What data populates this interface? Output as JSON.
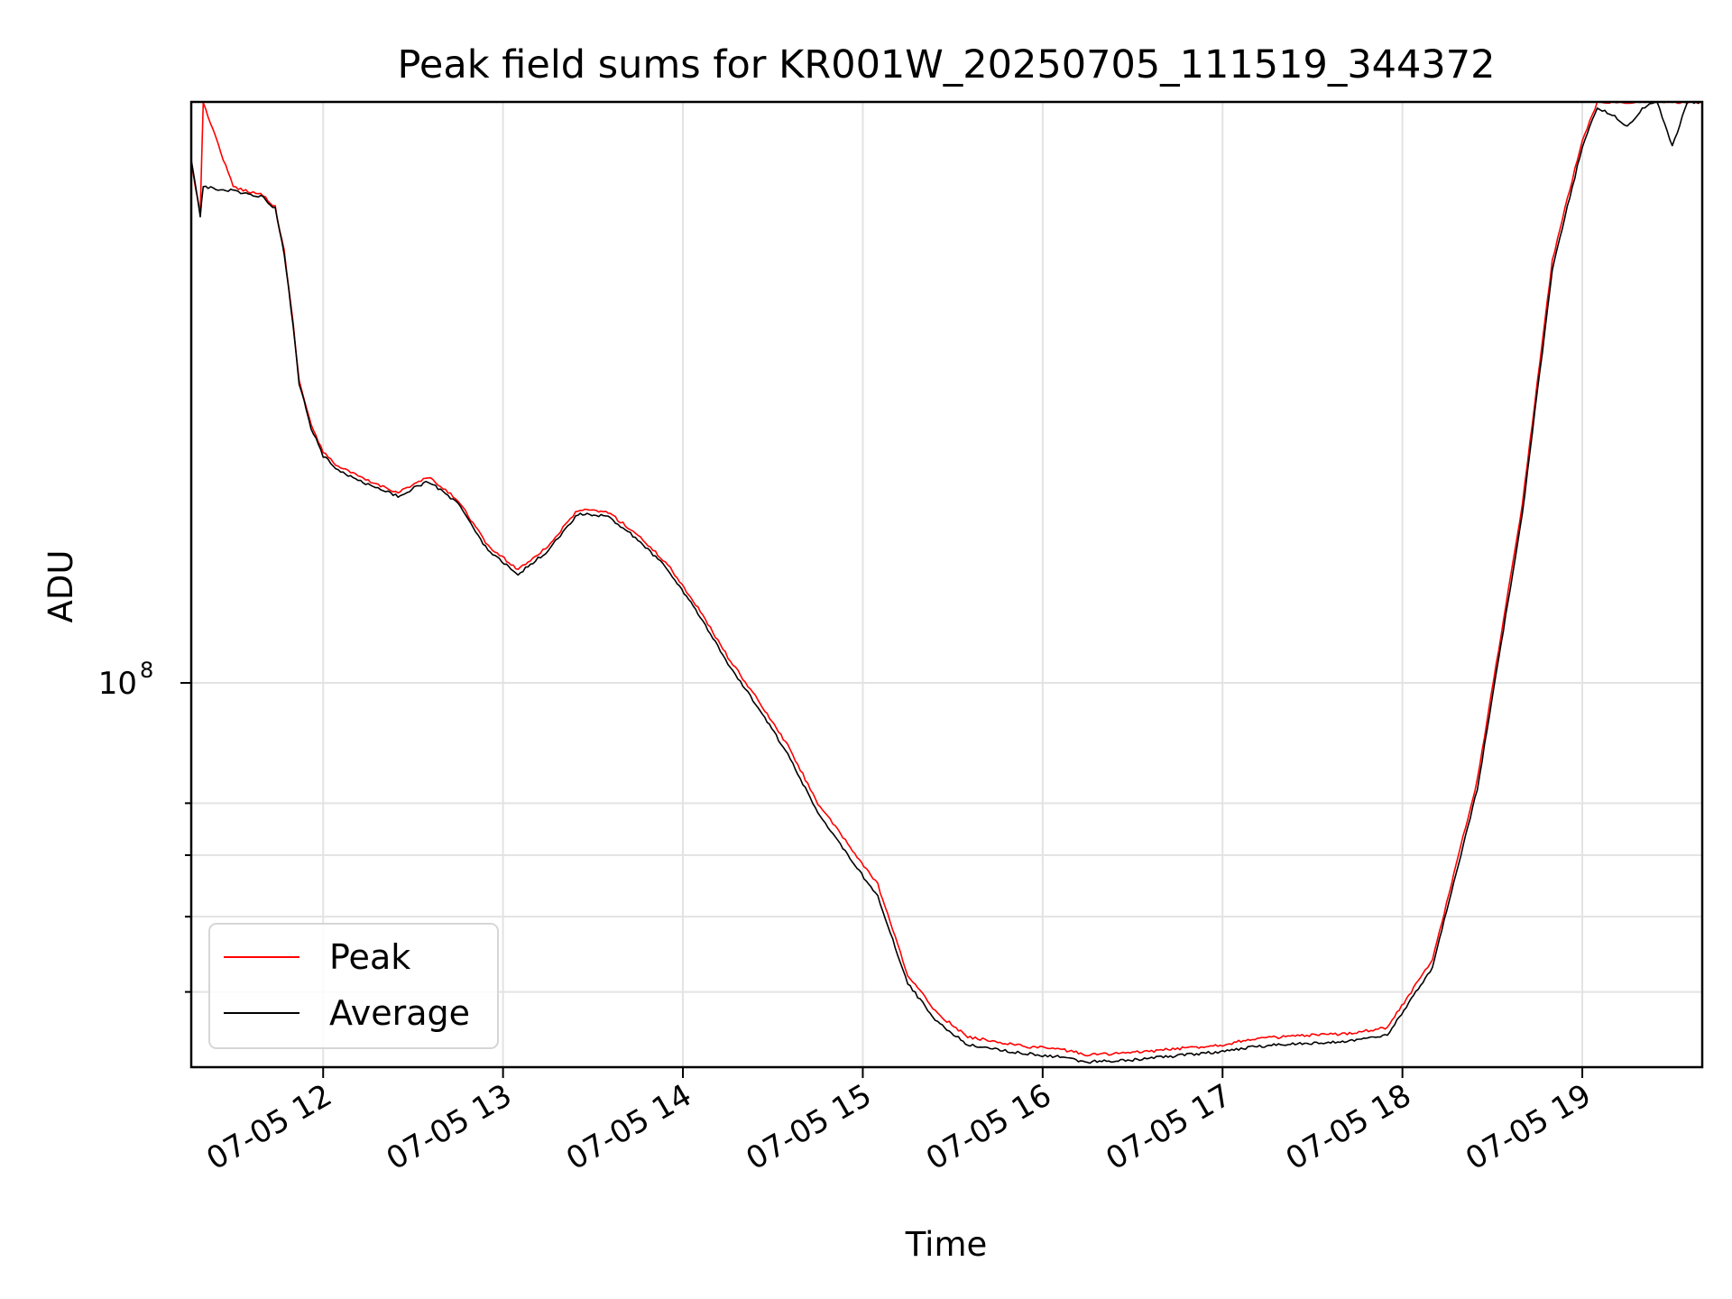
{
  "chart_data": {
    "type": "line",
    "title": "Peak field sums for KR001W_20250705_111519_344372",
    "xlabel": "Time",
    "ylabel": "ADU",
    "yscale": "log",
    "grid": true,
    "legend_position": "lower-left",
    "x_tick_labels": [
      "07-05 12",
      "07-05 13",
      "07-05 14",
      "07-05 15",
      "07-05 16",
      "07-05 17",
      "07-05 18",
      "07-05 19"
    ],
    "x_tick_hours": [
      12,
      13,
      14,
      15,
      16,
      17,
      18,
      19
    ],
    "xlim": [
      "07-05 11:16",
      "07-05 19:40"
    ],
    "y_major_tick": {
      "value": 100000000,
      "label_base": "10",
      "label_exp": "8"
    },
    "y_minor_ticks": [
      40000000,
      50000000,
      60000000,
      70000000
    ],
    "ylim": [
      32000000,
      560000000
    ],
    "series": [
      {
        "name": "Peak",
        "color": "#ff0000",
        "x": [
          "07-05 11:16",
          "07-05 11:19",
          "07-05 11:20",
          "07-05 11:30",
          "07-05 11:40",
          "07-05 11:44",
          "07-05 11:47",
          "07-05 11:50",
          "07-05 11:52",
          "07-05 11:56",
          "07-05 12:00",
          "07-05 12:05",
          "07-05 12:15",
          "07-05 12:25",
          "07-05 12:35",
          "07-05 12:45",
          "07-05 12:55",
          "07-05 13:05",
          "07-05 13:15",
          "07-05 13:25",
          "07-05 13:35",
          "07-05 13:45",
          "07-05 13:55",
          "07-05 14:05",
          "07-05 14:15",
          "07-05 14:25",
          "07-05 14:35",
          "07-05 14:45",
          "07-05 14:55",
          "07-05 15:05",
          "07-05 15:15",
          "07-05 15:25",
          "07-05 15:35",
          "07-05 15:45",
          "07-05 15:55",
          "07-05 16:05",
          "07-05 16:15",
          "07-05 16:30",
          "07-05 16:45",
          "07-05 17:00",
          "07-05 17:10",
          "07-05 17:25",
          "07-05 17:40",
          "07-05 17:55",
          "07-05 18:10",
          "07-05 18:25",
          "07-05 18:40",
          "07-05 18:50",
          "07-05 18:55",
          "07-05 19:00",
          "07-05 19:05",
          "07-05 19:10",
          "07-05 19:15",
          "07-05 19:20",
          "07-05 19:25",
          "07-05 19:30",
          "07-05 19:35",
          "07-05 19:38",
          "07-05 19:40"
        ],
        "y": [
          470000000,
          400000000,
          560000000,
          435000000,
          425000000,
          410000000,
          360000000,
          290000000,
          245000000,
          215000000,
          198000000,
          190000000,
          182000000,
          176000000,
          184000000,
          172000000,
          150000000,
          140000000,
          150000000,
          167000000,
          166000000,
          155000000,
          142000000,
          125000000,
          108000000,
          95000000,
          83000000,
          70000000,
          62000000,
          55000000,
          42000000,
          37500000,
          35000000,
          34500000,
          34000000,
          33800000,
          33200000,
          33400000,
          33800000,
          34200000,
          34800000,
          35100000,
          35300000,
          36000000,
          44000000,
          75000000,
          170000000,
          350000000,
          420000000,
          500000000,
          560000000,
          560000000,
          560000000,
          560000000,
          560000000,
          560000000,
          560000000,
          560000000,
          560000000
        ]
      },
      {
        "name": "Average",
        "color": "#000000",
        "x": [
          "07-05 11:16",
          "07-05 11:19",
          "07-05 11:20",
          "07-05 11:30",
          "07-05 11:40",
          "07-05 11:44",
          "07-05 11:47",
          "07-05 11:50",
          "07-05 11:52",
          "07-05 11:56",
          "07-05 12:00",
          "07-05 12:05",
          "07-05 12:15",
          "07-05 12:25",
          "07-05 12:35",
          "07-05 12:45",
          "07-05 12:55",
          "07-05 13:05",
          "07-05 13:15",
          "07-05 13:25",
          "07-05 13:35",
          "07-05 13:45",
          "07-05 13:55",
          "07-05 14:05",
          "07-05 14:15",
          "07-05 14:25",
          "07-05 14:35",
          "07-05 14:45",
          "07-05 14:55",
          "07-05 15:05",
          "07-05 15:15",
          "07-05 15:25",
          "07-05 15:35",
          "07-05 15:45",
          "07-05 15:55",
          "07-05 16:05",
          "07-05 16:15",
          "07-05 16:30",
          "07-05 16:45",
          "07-05 17:00",
          "07-05 17:10",
          "07-05 17:25",
          "07-05 17:40",
          "07-05 17:55",
          "07-05 18:10",
          "07-05 18:25",
          "07-05 18:40",
          "07-05 18:50",
          "07-05 18:55",
          "07-05 19:00",
          "07-05 19:05",
          "07-05 19:10",
          "07-05 19:15",
          "07-05 19:20",
          "07-05 19:25",
          "07-05 19:30",
          "07-05 19:35",
          "07-05 19:38",
          "07-05 19:40"
        ],
        "y": [
          470000000,
          400000000,
          435000000,
          430000000,
          422000000,
          408000000,
          358000000,
          288000000,
          243000000,
          213000000,
          196000000,
          188000000,
          180000000,
          174000000,
          182000000,
          170000000,
          148000000,
          138000000,
          148000000,
          165000000,
          164000000,
          153000000,
          140000000,
          123000000,
          106000000,
          93000000,
          81000000,
          68000000,
          60000000,
          53000000,
          41000000,
          36500000,
          34200000,
          33700000,
          33300000,
          33000000,
          32500000,
          32700000,
          33100000,
          33500000,
          34000000,
          34300000,
          34500000,
          35200000,
          43000000,
          73000000,
          165000000,
          340000000,
          410000000,
          490000000,
          550000000,
          540000000,
          520000000,
          550000000,
          560000000,
          490000000,
          560000000,
          560000000,
          560000000
        ]
      }
    ]
  }
}
